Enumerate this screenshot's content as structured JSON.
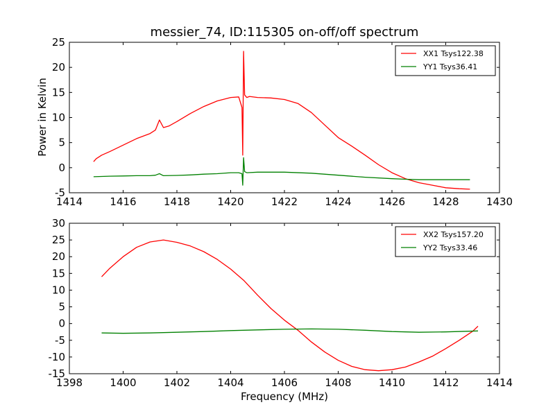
{
  "chart_data": [
    {
      "type": "line",
      "title": "messier_74, ID:115305 on-off/off spectrum",
      "xlabel": "",
      "ylabel": "Power in Kelvin",
      "xlim": [
        1414,
        1430
      ],
      "ylim": [
        -5,
        25
      ],
      "xticks": [
        1414,
        1416,
        1418,
        1420,
        1422,
        1424,
        1426,
        1428,
        1430
      ],
      "yticks": [
        -5,
        0,
        5,
        10,
        15,
        20,
        25
      ],
      "legend_position": "upper right",
      "grid": false,
      "series": [
        {
          "name": "XX1 Tsys122.38",
          "color": "#ff0000",
          "x": [
            1414.9,
            1415.0,
            1415.2,
            1415.5,
            1416.0,
            1416.5,
            1417.0,
            1417.2,
            1417.35,
            1417.5,
            1417.7,
            1418.0,
            1418.5,
            1419.0,
            1419.5,
            1420.0,
            1420.3,
            1420.42,
            1420.45,
            1420.48,
            1420.52,
            1420.6,
            1420.7,
            1421.0,
            1421.5,
            1422.0,
            1422.5,
            1423.0,
            1423.5,
            1424.0,
            1424.5,
            1425.0,
            1425.5,
            1426.0,
            1426.5,
            1427.0,
            1427.5,
            1428.0,
            1428.5,
            1428.9
          ],
          "y": [
            1.2,
            1.8,
            2.5,
            3.2,
            4.5,
            5.8,
            6.8,
            7.5,
            9.5,
            8.0,
            8.3,
            9.2,
            10.8,
            12.2,
            13.3,
            14.0,
            14.1,
            12.0,
            2.5,
            23.2,
            14.5,
            14.0,
            14.2,
            14.0,
            13.9,
            13.6,
            12.8,
            11.0,
            8.5,
            6.0,
            4.3,
            2.5,
            0.6,
            -1.0,
            -2.2,
            -3.0,
            -3.5,
            -4.0,
            -4.2,
            -4.3
          ]
        },
        {
          "name": "YY1 Tsys36.41",
          "color": "#008000",
          "x": [
            1414.9,
            1415.5,
            1416.0,
            1416.5,
            1417.0,
            1417.2,
            1417.35,
            1417.5,
            1418.0,
            1418.5,
            1419.0,
            1419.5,
            1420.0,
            1420.3,
            1420.42,
            1420.45,
            1420.48,
            1420.52,
            1420.6,
            1421.0,
            1422.0,
            1423.0,
            1424.0,
            1425.0,
            1426.0,
            1426.5,
            1427.0,
            1428.0,
            1428.9
          ],
          "y": [
            -1.8,
            -1.7,
            -1.65,
            -1.6,
            -1.6,
            -1.5,
            -1.2,
            -1.6,
            -1.55,
            -1.45,
            -1.3,
            -1.2,
            -1.0,
            -1.0,
            -1.2,
            -3.5,
            2.0,
            -0.8,
            -1.0,
            -0.9,
            -0.9,
            -1.1,
            -1.5,
            -1.9,
            -2.2,
            -2.3,
            -2.4,
            -2.4,
            -2.4
          ]
        }
      ]
    },
    {
      "type": "line",
      "title": "",
      "xlabel": "Frequency (MHz)",
      "ylabel": "",
      "xlim": [
        1398,
        1414
      ],
      "ylim": [
        -15,
        30
      ],
      "xticks": [
        1398,
        1400,
        1402,
        1404,
        1406,
        1408,
        1410,
        1412,
        1414
      ],
      "yticks": [
        -15,
        -10,
        -5,
        0,
        5,
        10,
        15,
        20,
        25,
        30
      ],
      "legend_position": "upper right",
      "grid": false,
      "series": [
        {
          "name": "XX2 Tsys157.20",
          "color": "#ff0000",
          "x": [
            1399.2,
            1399.5,
            1400.0,
            1400.5,
            1401.0,
            1401.5,
            1402.0,
            1402.5,
            1403.0,
            1403.5,
            1404.0,
            1404.5,
            1405.0,
            1405.5,
            1406.0,
            1406.5,
            1407.0,
            1407.5,
            1408.0,
            1408.5,
            1409.0,
            1409.5,
            1410.0,
            1410.5,
            1411.0,
            1411.5,
            1412.0,
            1412.5,
            1413.0,
            1413.2
          ],
          "y": [
            14.0,
            16.5,
            20.0,
            22.8,
            24.4,
            25.0,
            24.3,
            23.2,
            21.5,
            19.2,
            16.3,
            12.8,
            8.5,
            4.5,
            1.0,
            -2.0,
            -5.5,
            -8.5,
            -11.0,
            -12.8,
            -13.8,
            -14.1,
            -13.8,
            -13.0,
            -11.5,
            -9.8,
            -7.5,
            -5.0,
            -2.3,
            -0.8
          ]
        },
        {
          "name": "YY2 Tsys33.46",
          "color": "#008000",
          "x": [
            1399.2,
            1400.0,
            1401.0,
            1402.0,
            1403.0,
            1404.0,
            1405.0,
            1406.0,
            1407.0,
            1408.0,
            1409.0,
            1410.0,
            1411.0,
            1412.0,
            1413.2
          ],
          "y": [
            -2.8,
            -2.9,
            -2.8,
            -2.6,
            -2.4,
            -2.1,
            -1.9,
            -1.7,
            -1.6,
            -1.7,
            -2.0,
            -2.4,
            -2.6,
            -2.5,
            -2.2
          ]
        }
      ]
    }
  ]
}
